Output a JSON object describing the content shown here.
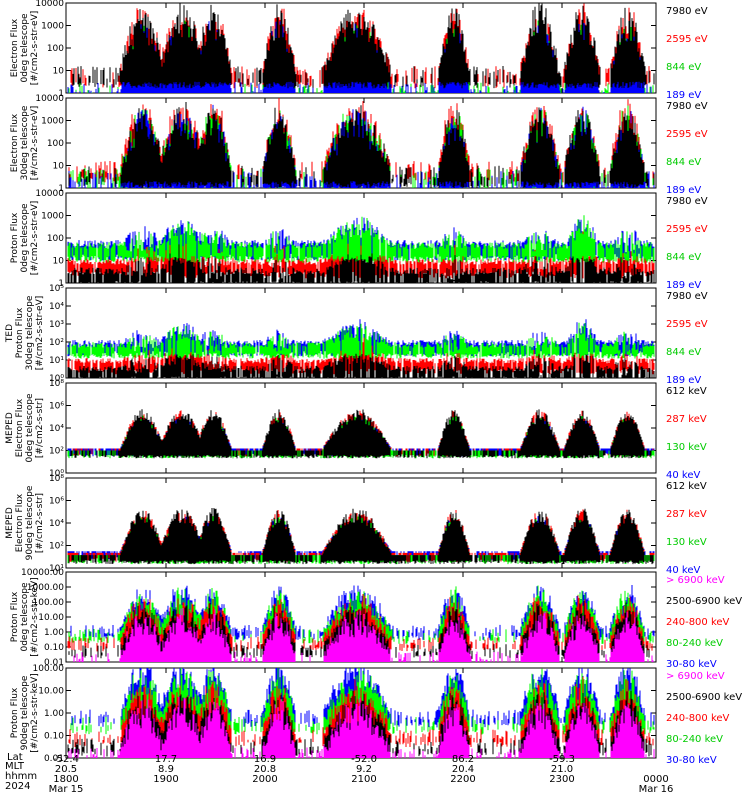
{
  "colors": {
    "black": "#000000",
    "red": "#ff0000",
    "green": "#00ff00",
    "blue": "#0000ff",
    "magenta": "#ff00ff",
    "text_green": "#00cc00"
  },
  "chart_data": [
    {
      "type": "line",
      "ylabel_lines": [
        "Electron Flux",
        "0deg telescope",
        "[#/cm2-s-str-eV]"
      ],
      "yscale": "log",
      "ylim": [
        1,
        10000
      ],
      "ytick_labels": [
        "1",
        "10",
        "100",
        "1000",
        "10000"
      ],
      "series": [
        {
          "name": "7980 eV",
          "color": "black"
        },
        {
          "name": "2595 eV",
          "color": "red"
        },
        {
          "name": "844 eV",
          "color": "green"
        },
        {
          "name": "189 eV",
          "color": "blue"
        }
      ],
      "front": "black",
      "base": [
        8,
        8,
        1.5,
        1.5
      ]
    },
    {
      "type": "line",
      "ylabel_lines": [
        "Electron Flux",
        "30deg telescope",
        "[#/cm2-s-str-eV]"
      ],
      "yscale": "log",
      "ylim": [
        1,
        10000
      ],
      "ytick_labels": [
        "1",
        "10",
        "100",
        "1000",
        "10000"
      ],
      "series": [
        {
          "name": "7980 eV",
          "color": "black"
        },
        {
          "name": "2595 eV",
          "color": "red"
        },
        {
          "name": "844 eV",
          "color": "green"
        },
        {
          "name": "189 eV",
          "color": "blue"
        }
      ],
      "front": "black",
      "base": [
        5,
        8,
        4,
        3
      ]
    },
    {
      "type": "line",
      "ylabel_lines": [
        "Proton Flux",
        "0deg telescope",
        "[#/cm2-s-str-eV]"
      ],
      "yscale": "log",
      "ylim": [
        1,
        10000
      ],
      "ytick_labels": [
        "1",
        "10",
        "100",
        "1000",
        "10000"
      ],
      "series": [
        {
          "name": "7980 eV",
          "color": "black"
        },
        {
          "name": "2595 eV",
          "color": "red"
        },
        {
          "name": "844 eV",
          "color": "green"
        },
        {
          "name": "189 eV",
          "color": "blue"
        }
      ],
      "front": "green",
      "base": [
        3,
        8,
        40,
        50
      ]
    },
    {
      "type": "line",
      "ylabel_lines": [
        "TED",
        "Proton Flux",
        "30deg telescope",
        "[#/cm2-s-str-eV]"
      ],
      "yscale": "log",
      "ylim": [
        1,
        100000
      ],
      "ytick_labels": [
        "10⁰",
        "10¹",
        "10²",
        "10³",
        "10⁴",
        "10⁵"
      ],
      "series": [
        {
          "name": "7980 eV",
          "color": "black"
        },
        {
          "name": "2595 eV",
          "color": "red"
        },
        {
          "name": "844 eV",
          "color": "green"
        },
        {
          "name": "189 eV",
          "color": "blue"
        }
      ],
      "front": "green",
      "base": [
        3,
        8,
        60,
        80
      ]
    },
    {
      "type": "line",
      "ylabel_lines": [
        "MEPED",
        "Electron Flux",
        "0deg telescope",
        "[#/cm2-s-str]"
      ],
      "yscale": "log",
      "ylim": [
        1,
        100000000
      ],
      "ytick_labels": [
        "10⁰",
        "10²",
        "10⁴",
        "10⁶",
        "10⁸"
      ],
      "series": [
        {
          "name": "612 keV",
          "color": "black"
        },
        {
          "name": "287 keV",
          "color": "red"
        },
        {
          "name": "130 keV",
          "color": "green"
        },
        {
          "name": "40 keV",
          "color": "blue"
        }
      ],
      "front": "black",
      "base": [
        100,
        150,
        100,
        150
      ]
    },
    {
      "type": "line",
      "ylabel_lines": [
        "MEPED",
        "Electron Flux",
        "90deg telescope",
        "[#/cm2-s-str]"
      ],
      "yscale": "log",
      "ylim": [
        10,
        100000000
      ],
      "ytick_labels": [
        "10¹",
        "10²",
        "10⁴",
        "10⁶",
        "10⁸"
      ],
      "series": [
        {
          "name": "612 keV",
          "color": "black"
        },
        {
          "name": "287 keV",
          "color": "red"
        },
        {
          "name": "130 keV",
          "color": "green"
        },
        {
          "name": "40 keV",
          "color": "blue"
        }
      ],
      "front": "black",
      "base": [
        100,
        150,
        100,
        200
      ]
    },
    {
      "type": "line",
      "ylabel_lines": [
        "Proton Flux",
        "0deg telescope",
        "[#/cm2-s-str-keV]"
      ],
      "yscale": "log",
      "ylim": [
        0.01,
        10000
      ],
      "ytick_labels": [
        "0.01",
        "0.10",
        "1.00",
        "10.00",
        "100.00",
        "1000.00",
        "10000.00"
      ],
      "series": [
        {
          "name": "> 6900 keV",
          "color": "magenta"
        },
        {
          "name": "2500-6900 keV",
          "color": "black"
        },
        {
          "name": "240-800 keV",
          "color": "red"
        },
        {
          "name": "80-240 keV",
          "color": "green"
        },
        {
          "name": "30-80 keV",
          "color": "blue"
        }
      ],
      "front": "magenta",
      "base": [
        0.025,
        0.08,
        0.25,
        0.8,
        1.5
      ]
    },
    {
      "type": "line",
      "ylabel_lines": [
        "Proton Flux",
        "90deg telescope",
        "[#/cm2-s-str-keV]"
      ],
      "yscale": "log",
      "ylim": [
        0.01,
        1000
      ],
      "ytick_labels": [
        "0.01",
        "0.10",
        "1.00",
        "10.00",
        "100.00"
      ],
      "series": [
        {
          "name": "> 6900 keV",
          "color": "magenta"
        },
        {
          "name": "2500-6900 keV",
          "color": "black"
        },
        {
          "name": "240-800 keV",
          "color": "red"
        },
        {
          "name": "80-240 keV",
          "color": "green"
        },
        {
          "name": "30-80 keV",
          "color": "blue"
        }
      ],
      "front": "magenta",
      "base": [
        0.02,
        0.06,
        0.2,
        1,
        2.5
      ]
    }
  ],
  "x_axis": {
    "row_labels": [
      "MLT",
      "hhmm",
      "2024"
    ],
    "top_row_label": "Lat",
    "columns": [
      {
        "lat": "-52.4",
        "mlt": "20.5",
        "hhmm": "1800",
        "date": "Mar 15"
      },
      {
        "lat": "17.7",
        "mlt": "8.9",
        "hhmm": "1900",
        "date": ""
      },
      {
        "lat": "16.9",
        "mlt": "20.8",
        "hhmm": "2000",
        "date": ""
      },
      {
        "lat": "-52.0",
        "mlt": "9.2",
        "hhmm": "2100",
        "date": ""
      },
      {
        "lat": "86.2",
        "mlt": "20.4",
        "hhmm": "2200",
        "date": ""
      },
      {
        "lat": "-59.3",
        "mlt": "21.0",
        "hhmm": "2300",
        "date": ""
      },
      {
        "lat": "",
        "mlt": "",
        "hhmm": "0000",
        "date": "Mar 16"
      }
    ]
  },
  "bursts": [
    [
      120,
      165
    ],
    [
      195,
      232
    ],
    [
      262,
      296
    ],
    [
      343,
      380
    ],
    [
      438,
      470
    ],
    [
      520,
      560
    ],
    [
      564,
      600
    ],
    [
      610,
      645
    ]
  ],
  "arches": [
    [
      158,
      206
    ],
    [
      322,
      392
    ],
    [
      568,
      598
    ]
  ]
}
